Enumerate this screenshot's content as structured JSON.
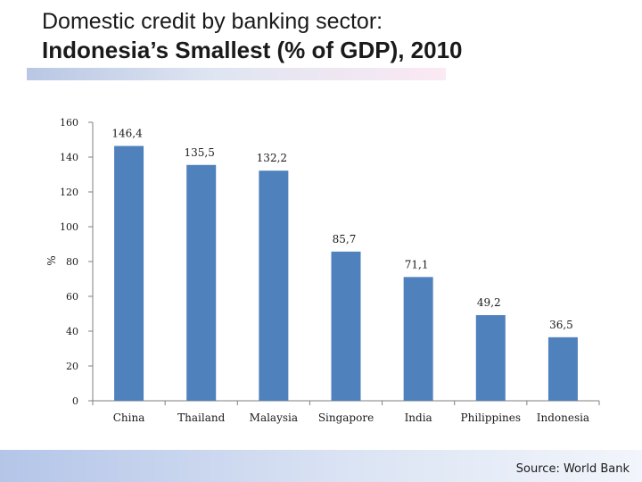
{
  "slide": {
    "title_line1": "Domestic credit by banking sector:",
    "title_line2": "Indonesia’s Smallest (% of GDP), 2010",
    "source": "Source: World Bank"
  },
  "colors": {
    "bar": "#4f81bd",
    "axis": "#7f7f7f"
  },
  "chart_data": {
    "type": "bar",
    "categories": [
      "China",
      "Thailand",
      "Malaysia",
      "Singapore",
      "India",
      "Philippines",
      "Indonesia"
    ],
    "values": [
      146.4,
      135.5,
      132.2,
      85.7,
      71.1,
      49.2,
      36.5
    ],
    "data_labels": [
      "146,4",
      "135,5",
      "132,2",
      "85,7",
      "71,1",
      "49,2",
      "36,5"
    ],
    "ylabel": "%",
    "ylim": [
      0,
      160
    ],
    "yticks": [
      0,
      20,
      40,
      60,
      80,
      100,
      120,
      140,
      160
    ],
    "grid": false,
    "legend": "none"
  }
}
